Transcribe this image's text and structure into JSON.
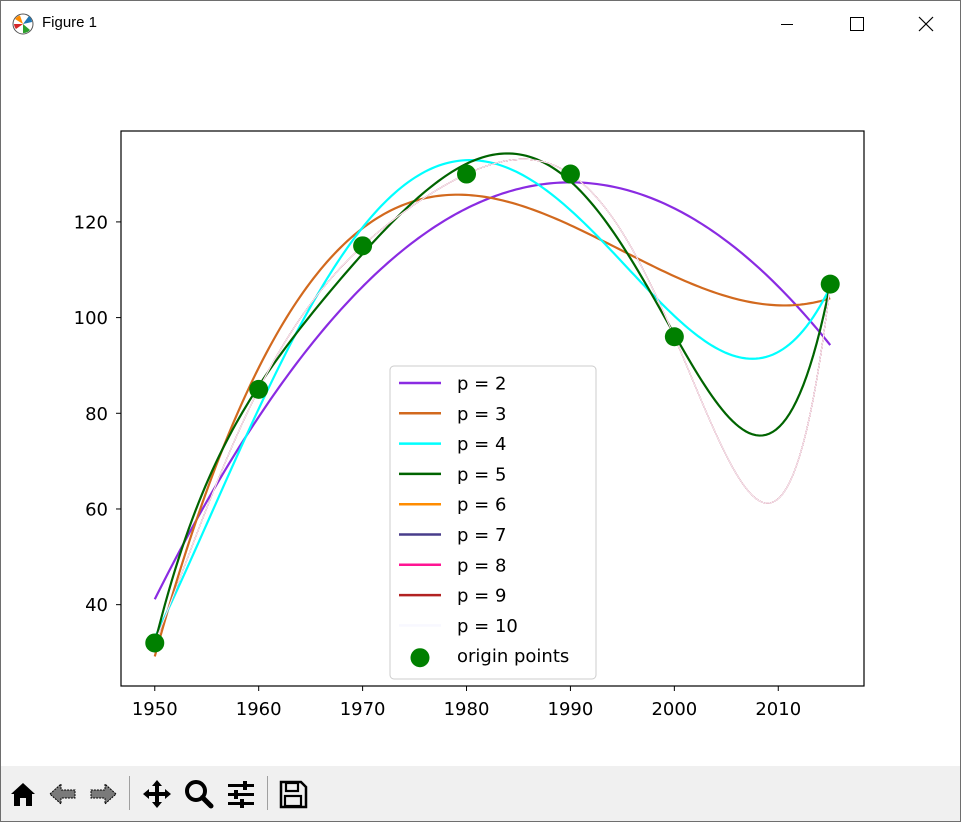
{
  "window": {
    "title": "Figure 1",
    "app_icon": "matplotlib-icon",
    "controls": [
      "minimize-icon",
      "maximize-icon",
      "close-icon"
    ]
  },
  "toolbar": {
    "buttons": [
      {
        "name": "home",
        "icon": "home-icon"
      },
      {
        "name": "back",
        "icon": "back-arrow-icon"
      },
      {
        "name": "forward",
        "icon": "forward-arrow-icon"
      },
      {
        "name": "pan",
        "icon": "pan-move-icon"
      },
      {
        "name": "zoom",
        "icon": "zoom-magnifier-icon"
      },
      {
        "name": "configure",
        "icon": "sliders-icon"
      },
      {
        "name": "save",
        "icon": "floppy-save-icon"
      }
    ]
  },
  "chart_data": {
    "type": "line",
    "title": "",
    "xlabel": "",
    "ylabel": "",
    "xlim": [
      1946.75,
      2018.25
    ],
    "ylim": [
      23.0,
      139.0
    ],
    "xticks": [
      1950,
      1960,
      1970,
      1980,
      1990,
      2000,
      2010
    ],
    "yticks": [
      40,
      60,
      80,
      100,
      120
    ],
    "grid": false,
    "legend_position": "lower center",
    "points": {
      "name": "origin points",
      "color": "#008000",
      "x": [
        1950,
        1960,
        1970,
        1980,
        1990,
        2000,
        2015
      ],
      "y": [
        32,
        85,
        115,
        130,
        130,
        96,
        107
      ]
    },
    "series": [
      {
        "name": "p = 2",
        "color": "#8a2be2",
        "degree": 2
      },
      {
        "name": "p = 3",
        "color": "#d2691e",
        "degree": 3
      },
      {
        "name": "p = 4",
        "color": "#00ffff",
        "degree": 4
      },
      {
        "name": "p = 5",
        "color": "#006400",
        "degree": 5
      },
      {
        "name": "p = 6",
        "color": "#ff8c00",
        "degree": 6
      },
      {
        "name": "p = 7",
        "color": "#483d8b",
        "degree": 7
      },
      {
        "name": "p = 8",
        "color": "#ff1493",
        "degree": 8
      },
      {
        "name": "p = 9",
        "color": "#b22222",
        "degree": 9
      },
      {
        "name": "p = 10",
        "color": "#f8f8ff",
        "degree": 10
      }
    ]
  }
}
